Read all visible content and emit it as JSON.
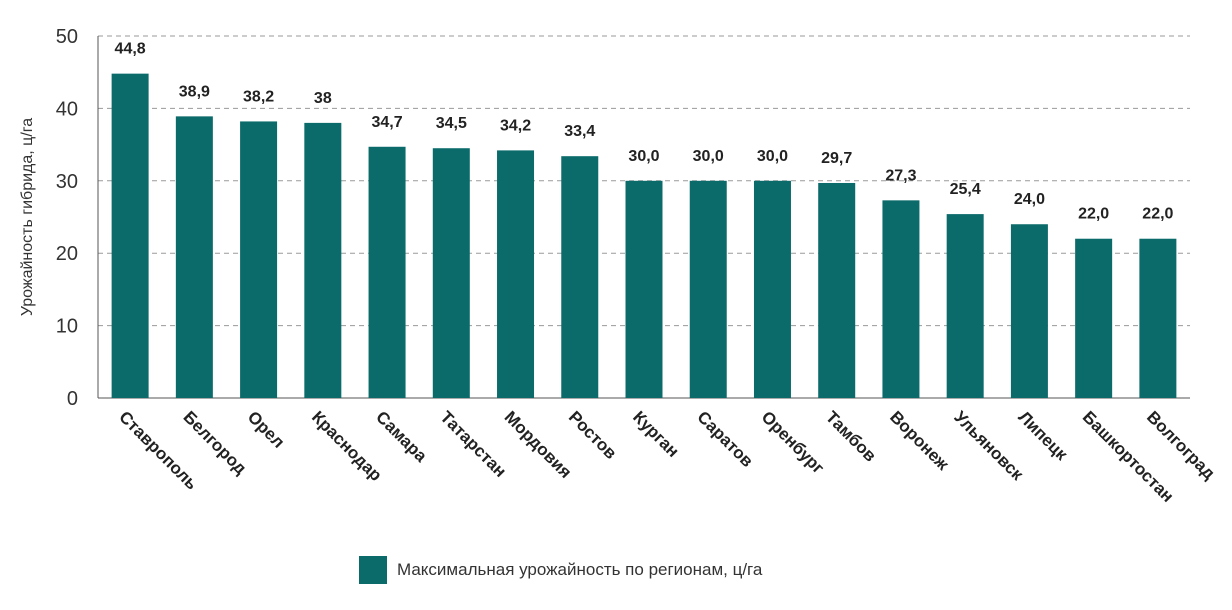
{
  "chart_data": {
    "type": "bar",
    "categories": [
      "Ставрополь",
      "Белгород",
      "Орел",
      "Краснодар",
      "Самара",
      "Татарстан",
      "Мордовия",
      "Ростов",
      "Курган",
      "Саратов",
      "Оренбург",
      "Тамбов",
      "Воронеж",
      "Ульяновск",
      "Липецк",
      "Башкортостан",
      "Волгоград"
    ],
    "values": [
      44.8,
      38.9,
      38.2,
      38,
      34.7,
      34.5,
      34.2,
      33.4,
      30.0,
      30.0,
      30.0,
      29.7,
      27.3,
      25.4,
      24.0,
      22.0,
      22.0
    ],
    "data_labels": [
      "44,8",
      "38,9",
      "38,2",
      "38",
      "34,7",
      "34,5",
      "34,2",
      "33,4",
      "30,0",
      "30,0",
      "30,0",
      "29,7",
      "27,3",
      "25,4",
      "24,0",
      "22,0",
      "22,0"
    ],
    "series": [
      {
        "name": "Максимальная урожайность по регионам, ц/га"
      }
    ],
    "ylabel": "Урожайность гибрида, ц/га",
    "xlabel": "",
    "ylim": [
      0,
      50
    ],
    "yticks": [
      "0",
      "10",
      "20",
      "30",
      "40",
      "50"
    ],
    "grid": true,
    "legend_position": "bottom",
    "bar_color": "#0b6b6b"
  }
}
